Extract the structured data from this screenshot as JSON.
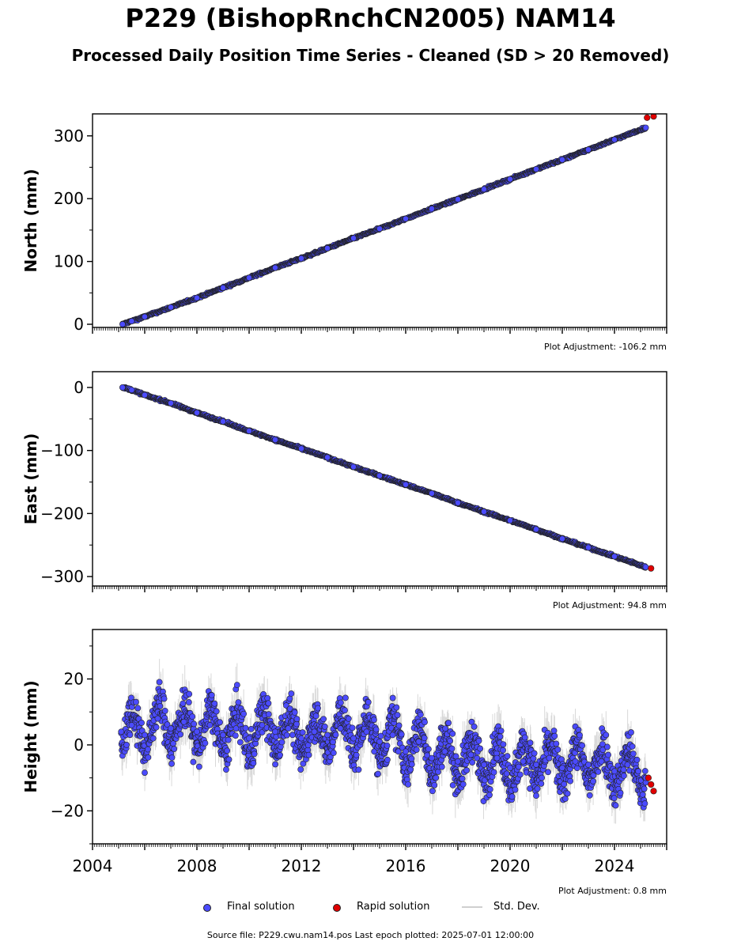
{
  "title": "P229 (BishopRnchCN2005) NAM14",
  "subtitle": "Processed Daily Position Time Series - Cleaned (SD > 20 Removed)",
  "legend": {
    "final_label": "Final solution",
    "rapid_label": "Rapid solution",
    "std_label": "Std. Dev."
  },
  "footer": "Source file: P229.cwu.nam14.pos  Last epoch plotted: 2025-07-01 12:00:00",
  "colors": {
    "final": "#4b4bff",
    "rapid": "#e00000",
    "stddev": "#b9b9b9",
    "marker_edge": "#222222"
  },
  "chart_data": [
    {
      "type": "scatter",
      "id": "north",
      "ylabel": "North (mm)",
      "xlim": [
        2004.0,
        2026.0
      ],
      "ylim": [
        -5,
        335
      ],
      "yticks": [
        0,
        100,
        200,
        300
      ],
      "ytick_labels": [
        "0",
        "100",
        "200",
        "300"
      ],
      "adjustment": "Plot Adjustment: -106.2 mm",
      "series": [
        {
          "name": "Final solution",
          "x": [
            2005.15,
            2005.5,
            2006.0,
            2007.0,
            2008.0,
            2009.0,
            2010.0,
            2011.0,
            2012.0,
            2013.0,
            2014.0,
            2015.0,
            2016.0,
            2017.0,
            2018.0,
            2019.0,
            2020.0,
            2021.0,
            2022.0,
            2023.0,
            2024.0,
            2025.2
          ],
          "y": [
            0,
            5,
            12,
            27,
            42,
            58,
            74,
            90,
            105,
            121,
            137,
            152,
            168,
            184,
            199,
            215,
            231,
            247,
            262,
            278,
            294,
            313
          ]
        },
        {
          "name": "Rapid solution",
          "x": [
            2025.25,
            2025.5
          ],
          "y": [
            329,
            331
          ]
        }
      ]
    },
    {
      "type": "scatter",
      "id": "east",
      "ylabel": "East (mm)",
      "xlim": [
        2004.0,
        2026.0
      ],
      "ylim": [
        -315,
        25
      ],
      "yticks": [
        0,
        -100,
        -200,
        -300
      ],
      "ytick_labels": [
        "0",
        "−100",
        "−200",
        "−300"
      ],
      "adjustment": "Plot Adjustment: 94.8 mm",
      "series": [
        {
          "name": "Final solution",
          "x": [
            2005.15,
            2005.5,
            2006.0,
            2007.0,
            2008.0,
            2009.0,
            2010.0,
            2011.0,
            2012.0,
            2013.0,
            2014.0,
            2015.0,
            2016.0,
            2017.0,
            2018.0,
            2019.0,
            2020.0,
            2021.0,
            2022.0,
            2023.0,
            2024.0,
            2025.2
          ],
          "y": [
            0,
            -4,
            -12,
            -25,
            -40,
            -54,
            -69,
            -83,
            -97,
            -111,
            -126,
            -140,
            -154,
            -168,
            -183,
            -197,
            -211,
            -225,
            -240,
            -254,
            -268,
            -285
          ]
        },
        {
          "name": "Rapid solution",
          "x": [
            2025.4
          ],
          "y": [
            -287
          ]
        }
      ]
    },
    {
      "type": "scatter",
      "id": "height",
      "ylabel": "Height (mm)",
      "xlim": [
        2004.0,
        2026.0
      ],
      "ylim": [
        -30,
        35
      ],
      "yticks": [
        20,
        0,
        -20
      ],
      "ytick_labels": [
        "20",
        "0",
        "−20"
      ],
      "xticks": [
        2004,
        2008,
        2012,
        2016,
        2020,
        2024
      ],
      "xtick_labels": [
        "2004",
        "2008",
        "2012",
        "2016",
        "2020",
        "2024"
      ],
      "adjustment": "Plot Adjustment: 0.8 mm",
      "series": [
        {
          "name": "Final solution",
          "x": [
            2005.1,
            2005.5,
            2006.0,
            2006.5,
            2007.0,
            2007.5,
            2008.0,
            2008.5,
            2009.0,
            2009.5,
            2010.0,
            2010.5,
            2011.0,
            2011.5,
            2012.0,
            2012.5,
            2013.0,
            2013.5,
            2014.0,
            2014.5,
            2015.0,
            2015.5,
            2016.0,
            2016.5,
            2017.0,
            2017.5,
            2018.0,
            2018.5,
            2019.0,
            2019.5,
            2020.0,
            2020.5,
            2021.0,
            2021.5,
            2022.0,
            2022.5,
            2023.0,
            2023.5,
            2024.0,
            2024.5,
            2025.2
          ],
          "y": [
            4,
            6,
            3,
            8,
            5,
            7,
            4,
            6,
            3,
            5,
            2,
            6,
            4,
            5,
            2,
            4,
            3,
            5,
            2,
            4,
            1,
            3,
            -2,
            1,
            -4,
            -2,
            -5,
            -3,
            -6,
            -4,
            -7,
            -5,
            -6,
            -4,
            -7,
            -5,
            -6,
            -5,
            -8,
            -6,
            -10
          ]
        },
        {
          "name": "Rapid solution",
          "x": [
            2025.3,
            2025.4,
            2025.5
          ],
          "y": [
            -10,
            -12,
            -14
          ]
        }
      ]
    }
  ]
}
